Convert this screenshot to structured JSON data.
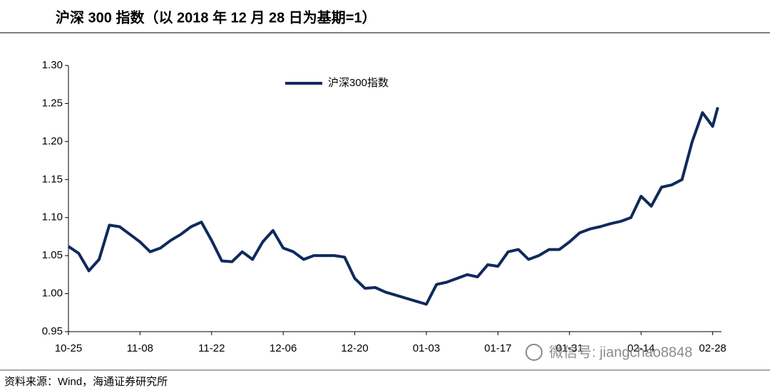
{
  "chart_data": {
    "type": "line",
    "title": "沪深 300 指数（以 2018 年 12 月 28 日为基期=1）",
    "source": "资料来源：Wind，海通证券研究所",
    "watermark": "微信号: jiangchao8848",
    "x": [
      "10-25",
      "10-27",
      "10-29",
      "10-31",
      "11-02",
      "11-04",
      "11-06",
      "11-08",
      "11-10",
      "11-12",
      "11-14",
      "11-16",
      "11-18",
      "11-20",
      "11-22",
      "11-24",
      "11-26",
      "11-28",
      "11-30",
      "12-02",
      "12-04",
      "12-06",
      "12-08",
      "12-10",
      "12-12",
      "12-14",
      "12-16",
      "12-18",
      "12-20",
      "12-22",
      "12-24",
      "12-26",
      "12-28",
      "12-30",
      "01-01",
      "01-03",
      "01-05",
      "01-07",
      "01-09",
      "01-11",
      "01-13",
      "01-15",
      "01-17",
      "01-19",
      "01-21",
      "01-23",
      "01-25",
      "01-27",
      "01-29",
      "01-31",
      "02-02",
      "02-04",
      "02-06",
      "02-08",
      "02-10",
      "02-12",
      "02-14",
      "02-16",
      "02-18",
      "02-20",
      "02-22",
      "02-24",
      "02-26",
      "02-28",
      "03-01"
    ],
    "series": [
      {
        "name": "沪深300指数",
        "color": "#0f2a5c",
        "values": [
          1.062,
          1.053,
          1.03,
          1.045,
          1.09,
          1.088,
          1.078,
          1.068,
          1.055,
          1.06,
          1.07,
          1.078,
          1.088,
          1.094,
          1.07,
          1.043,
          1.042,
          1.055,
          1.045,
          1.068,
          1.083,
          1.06,
          1.055,
          1.045,
          1.05,
          1.05,
          1.05,
          1.048,
          1.02,
          1.007,
          1.008,
          1.002,
          0.998,
          0.994,
          0.99,
          0.986,
          1.012,
          1.015,
          1.02,
          1.025,
          1.022,
          1.038,
          1.036,
          1.055,
          1.058,
          1.045,
          1.05,
          1.058,
          1.058,
          1.068,
          1.08,
          1.085,
          1.088,
          1.092,
          1.095,
          1.1,
          1.128,
          1.115,
          1.14,
          1.143,
          1.15,
          1.2,
          1.238,
          1.22,
          1.245
        ]
      }
    ],
    "xticks": [
      "10-25",
      "11-08",
      "11-22",
      "12-06",
      "12-20",
      "01-03",
      "01-17",
      "01-31",
      "02-14",
      "02-28"
    ],
    "ylim": [
      0.95,
      1.3
    ],
    "yticks": [
      0.95,
      {
        "value": 1.0,
        "label": "1.00"
      },
      1.05,
      {
        "value": 1.1,
        "label": "1.10"
      },
      1.15,
      {
        "value": 1.2,
        "label": "1.20"
      },
      1.25,
      {
        "value": 1.3,
        "label": "1.30"
      }
    ],
    "grid": false,
    "legend": "top"
  }
}
